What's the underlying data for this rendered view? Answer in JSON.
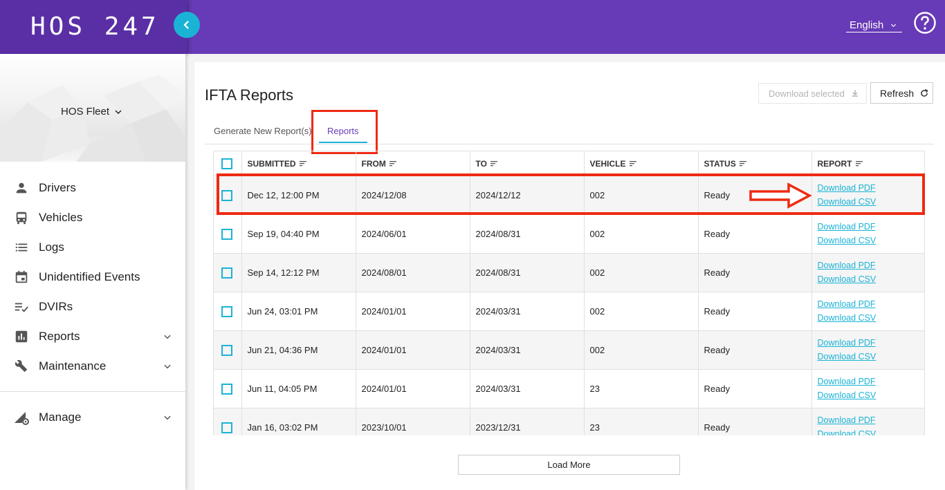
{
  "header": {
    "logo": "HOS 247",
    "language": "English"
  },
  "sidebar": {
    "fleet_name": "HOS Fleet",
    "items": [
      {
        "label": "Drivers"
      },
      {
        "label": "Vehicles"
      },
      {
        "label": "Logs"
      },
      {
        "label": "Unidentified Events"
      },
      {
        "label": "DVIRs"
      },
      {
        "label": "Reports"
      },
      {
        "label": "Maintenance"
      },
      {
        "label": "Manage"
      }
    ]
  },
  "main": {
    "title": "IFTA Reports",
    "download_selected_label": "Download selected",
    "refresh_label": "Refresh",
    "tabs": [
      {
        "label": "Generate New Report(s)"
      },
      {
        "label": "Reports"
      }
    ],
    "columns": [
      "SUBMITTED",
      "FROM",
      "TO",
      "VEHICLE",
      "STATUS",
      "REPORT"
    ],
    "rows": [
      {
        "submitted": "Dec 12, 12:00 PM",
        "from": "2024/12/08",
        "to": "2024/12/12",
        "vehicle": "002",
        "status": "Ready",
        "pdf": "Download PDF",
        "csv": "Download CSV"
      },
      {
        "submitted": "Sep 19, 04:40 PM",
        "from": "2024/06/01",
        "to": "2024/08/31",
        "vehicle": "002",
        "status": "Ready",
        "pdf": "Download PDF",
        "csv": "Download CSV"
      },
      {
        "submitted": "Sep 14, 12:12 PM",
        "from": "2024/08/01",
        "to": "2024/08/31",
        "vehicle": "002",
        "status": "Ready",
        "pdf": "Download PDF",
        "csv": "Download CSV"
      },
      {
        "submitted": "Jun 24, 03:01 PM",
        "from": "2024/01/01",
        "to": "2024/03/31",
        "vehicle": "002",
        "status": "Ready",
        "pdf": "Download PDF",
        "csv": "Download CSV"
      },
      {
        "submitted": "Jun 21, 04:36 PM",
        "from": "2024/01/01",
        "to": "2024/03/31",
        "vehicle": "002",
        "status": "Ready",
        "pdf": "Download PDF",
        "csv": "Download CSV"
      },
      {
        "submitted": "Jun 11, 04:05 PM",
        "from": "2024/01/01",
        "to": "2024/03/31",
        "vehicle": "23",
        "status": "Ready",
        "pdf": "Download PDF",
        "csv": "Download CSV"
      },
      {
        "submitted": "Jan 16, 03:02 PM",
        "from": "2023/10/01",
        "to": "2023/12/31",
        "vehicle": "23",
        "status": "Ready",
        "pdf": "Download PDF",
        "csv": "Download CSV"
      }
    ],
    "load_more_label": "Load More"
  },
  "colors": {
    "brand_purple": "#673ab7",
    "accent_cyan": "#1ab3d6",
    "highlight_red": "#ee2a12"
  }
}
